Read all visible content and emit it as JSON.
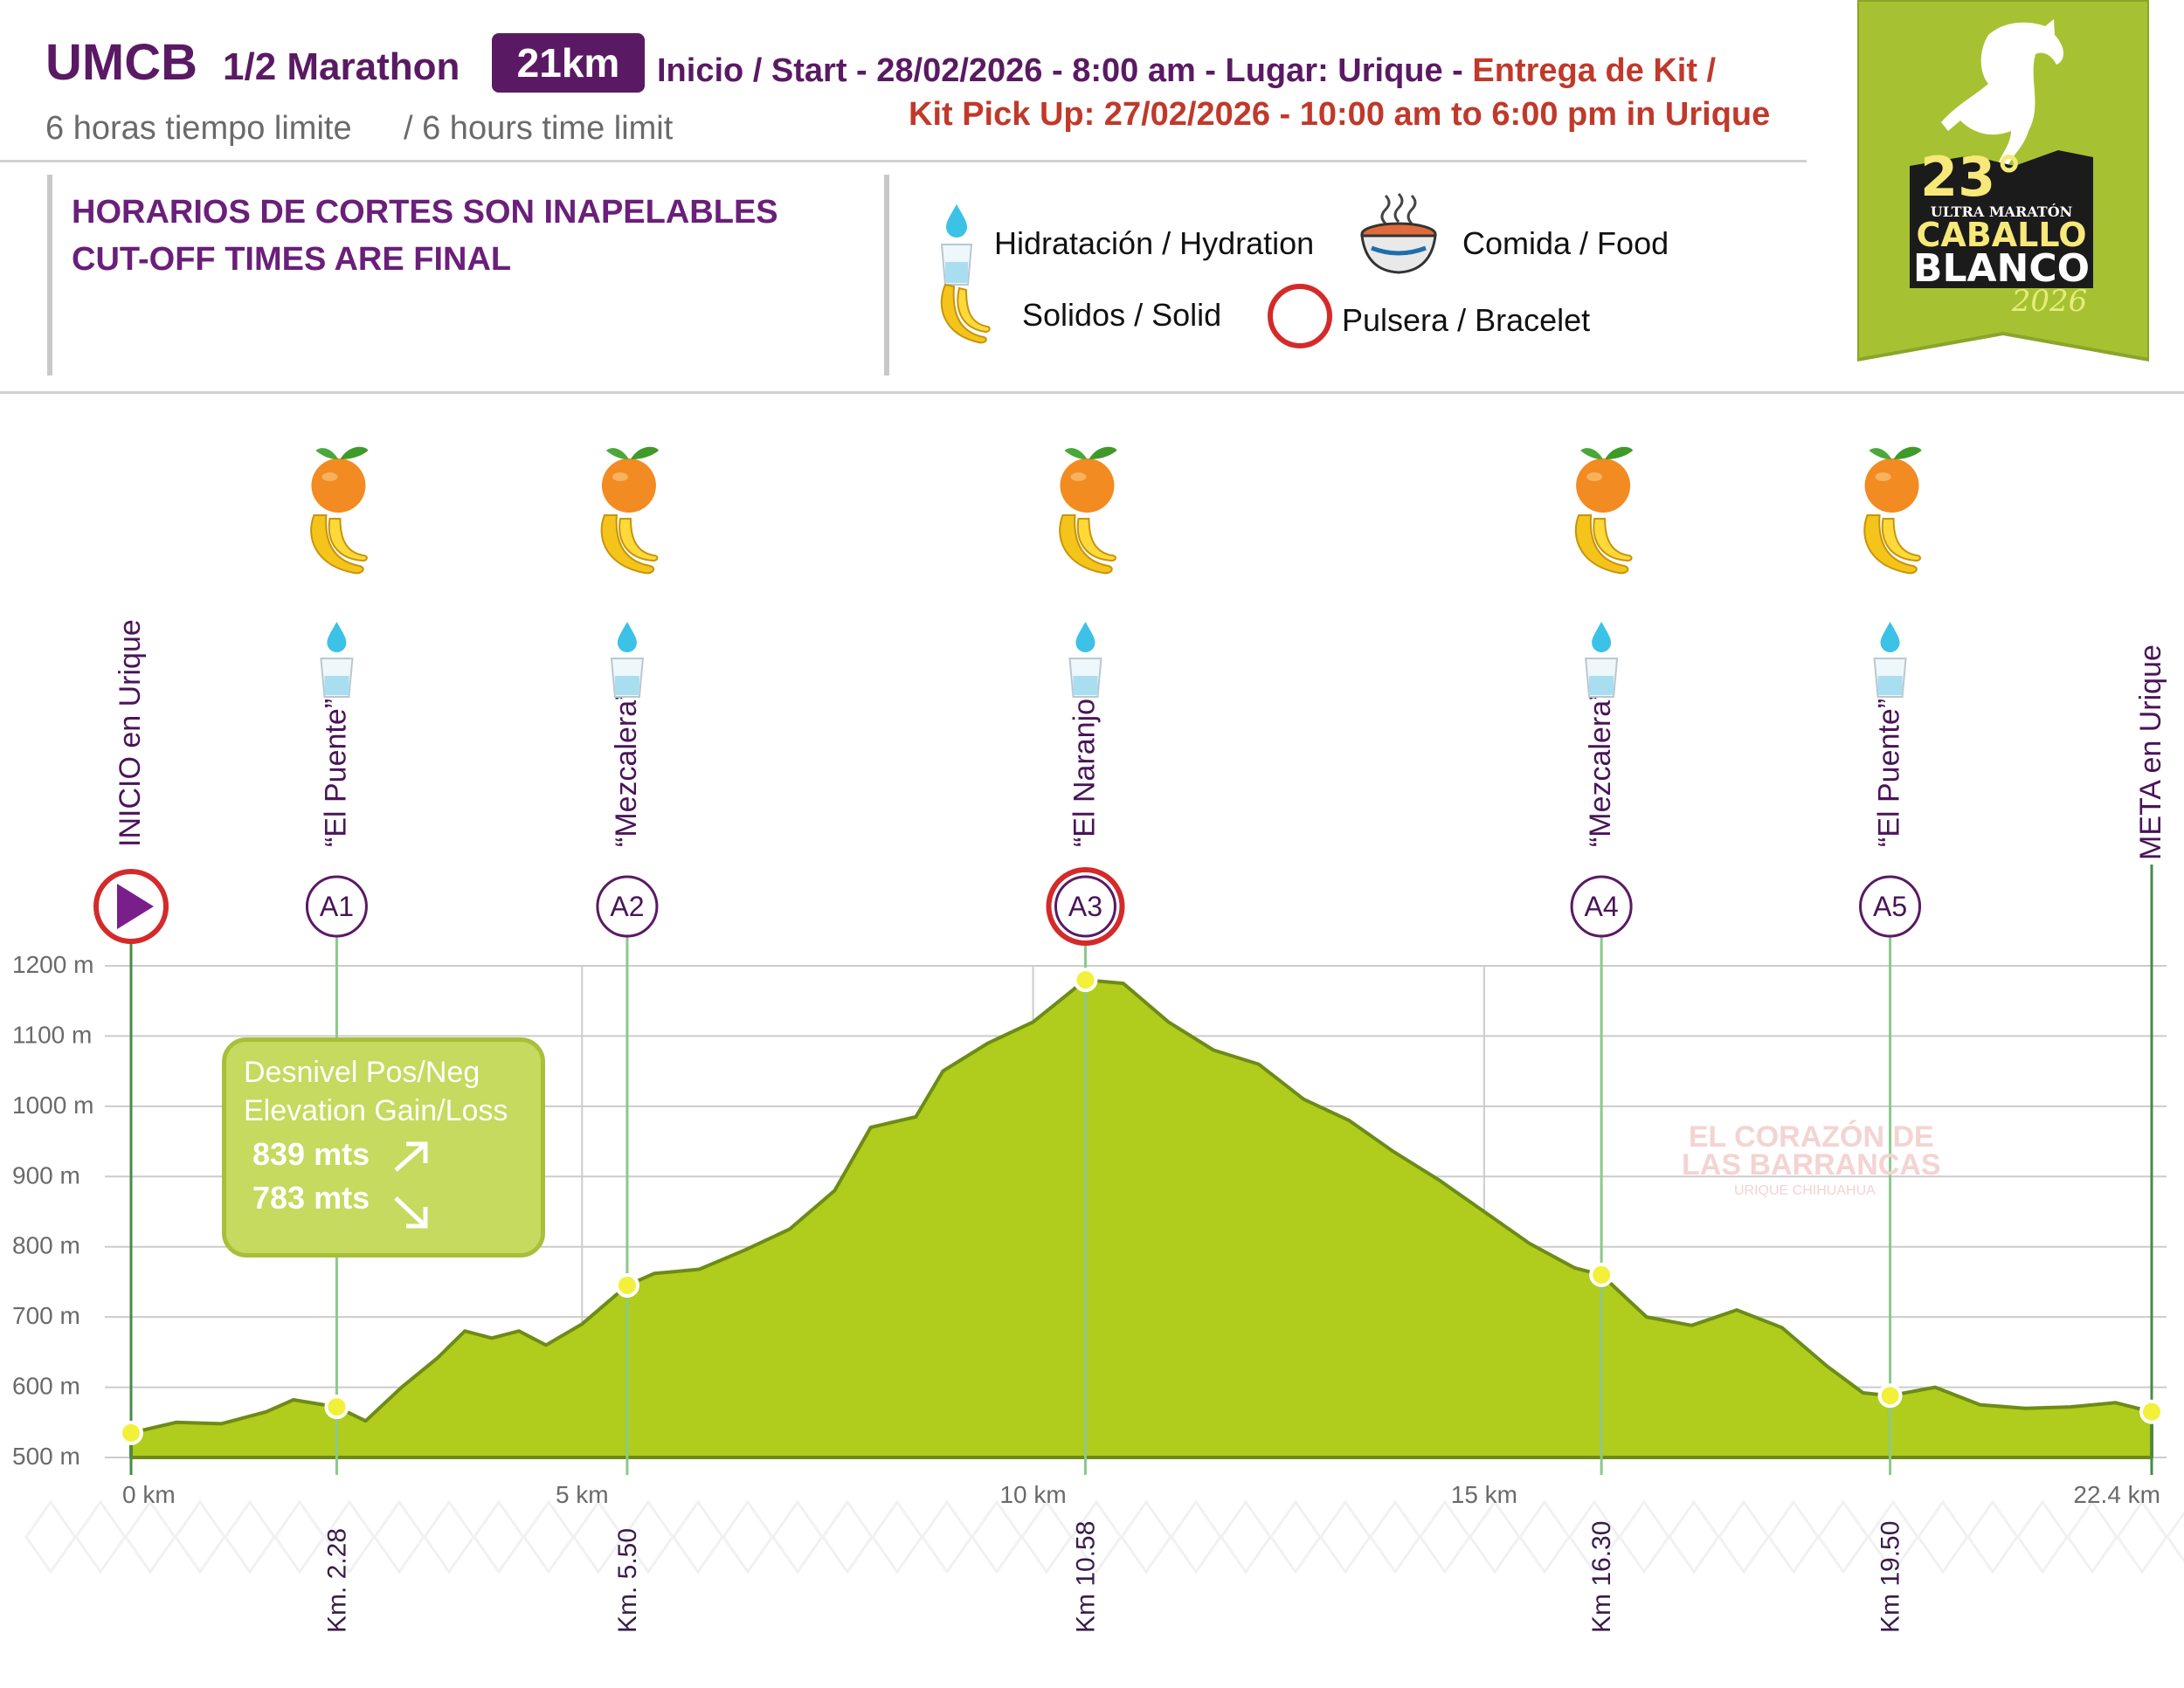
{
  "header": {
    "race_code": "UMCB",
    "race_name": "1/2 Marathon",
    "distance_badge": "21km",
    "start_text": "Inicio / Start - 28/02/2026 - 8:00 am - Lugar: Urique - ",
    "kit_text_a": "Entrega de Kit /",
    "kit_text_b": "Kit Pick Up: 27/02/2026 - 10:00 am to 6:00 pm in Urique",
    "limit_es": "6 horas tiempo limite",
    "limit_en": "/ 6 hours time limit"
  },
  "notice": {
    "line1": "HORARIOS DE CORTES SON INAPELABLES",
    "line2": "CUT-OFF TIMES ARE FINAL"
  },
  "legend": {
    "hydration": "Hidratación / Hydration",
    "food": "Comida / Food",
    "solid": "Solidos / Solid",
    "bracelet": "Pulsera / Bracelet"
  },
  "logo": {
    "edition": "23°",
    "line1": "ULTRA MARATÓN",
    "line2": "CABALLO",
    "line3": "BLANCO",
    "year": "2026"
  },
  "elevation_box": {
    "title_es": "Desnivel Pos/Neg",
    "title_en": "Elevation Gain/Loss",
    "gain": "839 mts",
    "loss": "783 mts"
  },
  "watermark": {
    "line1": "EL CORAZÓN DE",
    "line2": "LAS BARRANCAS",
    "line3": "URIQUE CHIHUAHUA"
  },
  "colors": {
    "fill": "#b0cc1c",
    "stroke": "#6e8a18",
    "purple": "#5a1a63",
    "red": "#d42a2a",
    "aid_line": "#8bc98b"
  },
  "chart_data": {
    "type": "area",
    "title": "",
    "xlabel": "",
    "ylabel": "",
    "xlim": [
      0,
      22.4
    ],
    "ylim": [
      500,
      1200
    ],
    "x_ticks": [
      {
        "x": 0,
        "label": "0 km"
      },
      {
        "x": 5,
        "label": "5 km"
      },
      {
        "x": 10,
        "label": "10 km"
      },
      {
        "x": 15,
        "label": "15 km"
      },
      {
        "x": 22.4,
        "label": "22.4 km"
      }
    ],
    "y_ticks": [
      {
        "y": 1200,
        "label": "1200 m"
      },
      {
        "y": 1100,
        "label": "1100 m"
      },
      {
        "y": 1000,
        "label": "1000 m"
      },
      {
        "y": 900,
        "label": "900 m"
      },
      {
        "y": 800,
        "label": "800 m"
      },
      {
        "y": 700,
        "label": "700 m"
      },
      {
        "y": 600,
        "label": "600 m"
      },
      {
        "y": 500,
        "label": "500 m"
      }
    ],
    "grid": true,
    "series": [
      {
        "x": [
          0,
          0.5,
          1,
          1.5,
          1.8,
          2.28,
          2.6,
          3.0,
          3.4,
          3.7,
          4.0,
          4.3,
          4.6,
          5.0,
          5.5,
          5.8,
          6.3,
          6.8,
          7.3,
          7.8,
          8.2,
          8.7,
          9.0,
          9.5,
          10.0,
          10.58,
          11.0,
          11.5,
          12.0,
          12.5,
          13.0,
          13.5,
          14.0,
          14.5,
          15.0,
          15.5,
          16.0,
          16.3,
          16.8,
          17.3,
          17.8,
          18.3,
          18.8,
          19.2,
          19.5,
          20.0,
          20.5,
          21.0,
          21.5,
          22.0,
          22.4
        ],
        "y": [
          535,
          550,
          548,
          565,
          582,
          572,
          552,
          600,
          642,
          680,
          670,
          680,
          660,
          690,
          745,
          762,
          768,
          795,
          825,
          880,
          970,
          985,
          1050,
          1090,
          1120,
          1180,
          1175,
          1120,
          1080,
          1060,
          1010,
          980,
          935,
          895,
          850,
          805,
          770,
          760,
          700,
          688,
          710,
          685,
          630,
          592,
          588,
          600,
          575,
          570,
          572,
          578,
          565
        ]
      }
    ],
    "aid_stations": [
      {
        "id": "INICIO",
        "label": "INICIO en Urique",
        "km": 0,
        "elev": 535,
        "km_label": ""
      },
      {
        "id": "A1",
        "label": "“El Puente”",
        "km": 2.28,
        "elev": 572,
        "km_label": "Km. 2.28"
      },
      {
        "id": "A2",
        "label": "“Mezcalera”",
        "km": 5.5,
        "elev": 745,
        "km_label": "Km. 5.50"
      },
      {
        "id": "A3",
        "label": "“El Naranjo”",
        "km": 10.58,
        "elev": 1180,
        "km_label": "Km 10.58"
      },
      {
        "id": "A4",
        "label": "“Mezcalera”",
        "km": 16.3,
        "elev": 760,
        "km_label": "Km 16.30"
      },
      {
        "id": "A5",
        "label": "“El Puente”",
        "km": 19.5,
        "elev": 588,
        "km_label": "Km 19.50"
      },
      {
        "id": "META",
        "label": "META en Urique",
        "km": 22.4,
        "elev": 565,
        "km_label": ""
      }
    ]
  }
}
